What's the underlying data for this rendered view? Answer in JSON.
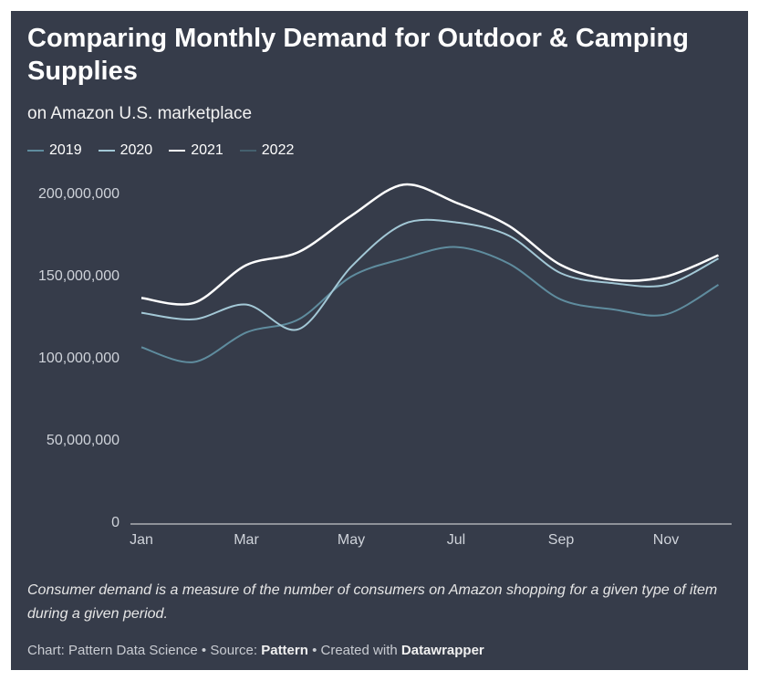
{
  "chart_data": {
    "type": "line",
    "title": "Comparing Monthly Demand for Outdoor & Camping Supplies",
    "subtitle": "on Amazon U.S. marketplace",
    "categories": [
      "Jan",
      null,
      "Mar",
      null,
      "May",
      null,
      "Jul",
      null,
      "Sep",
      null,
      "Nov",
      null
    ],
    "series": [
      {
        "name": "2019",
        "color": "#5f8c9e",
        "values": [
          107000000,
          98000000,
          116000000,
          124000000,
          150000000,
          161000000,
          168000000,
          158000000,
          136000000,
          130000000,
          127000000,
          145000000
        ]
      },
      {
        "name": "2020",
        "color": "#a3c8d6",
        "values": [
          128000000,
          124000000,
          133000000,
          118000000,
          156000000,
          182000000,
          183000000,
          175000000,
          152000000,
          146000000,
          145000000,
          161000000
        ]
      },
      {
        "name": "2021",
        "color": "#ffffff",
        "values": [
          137000000,
          134000000,
          157000000,
          165000000,
          187000000,
          206000000,
          195000000,
          181000000,
          157000000,
          148000000,
          150000000,
          163000000
        ]
      },
      {
        "name": "2022",
        "color": "#44606e",
        "values": [
          null,
          null,
          null,
          null,
          null,
          null,
          null,
          null,
          null,
          null,
          null,
          null
        ]
      }
    ],
    "ylim": [
      0,
      200000000
    ],
    "yticks": [
      0,
      {
        "value": 50000000,
        "label": "50,000,000"
      },
      {
        "value": 100000000,
        "label": "100,000,000"
      },
      {
        "value": 150000000,
        "label": "150,000,000"
      },
      {
        "value": 200000000,
        "label": "200,000,000"
      }
    ],
    "note": "Consumer demand is a measure of the number of consumers on Amazon shopping for a given type of item during a given period.",
    "credit": {
      "prefix": "Chart: Pattern Data Science • Source:",
      "source": "Pattern",
      "middle": "• Created with",
      "tool": "Datawrapper"
    }
  }
}
